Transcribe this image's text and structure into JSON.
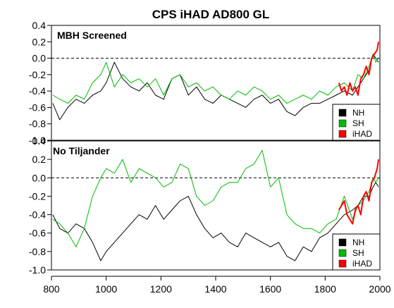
{
  "chart_data": {
    "type": "line",
    "title": "CPS iHAD AD800 GL",
    "xlabel": "",
    "ylabel": "",
    "xlim": [
      800,
      2000
    ],
    "x_ticks": [
      800,
      1000,
      1200,
      1400,
      1600,
      1800,
      2000
    ],
    "x_tick_labels": [
      "800",
      "1000",
      "1200",
      "1400",
      "1600",
      "1800",
      "2000"
    ],
    "ylim": [
      -1.0,
      0.4
    ],
    "y_ticks": [
      -1.0,
      -0.8,
      -0.6,
      -0.4,
      -0.2,
      0.0,
      0.2,
      0.4
    ],
    "y_tick_labels": [
      "-1.0",
      "-0.8",
      "-0.6",
      "-0.4",
      "-0.2",
      "0.0",
      "0.2",
      "0.4"
    ],
    "reference_line": 0.0,
    "colors": {
      "NH": "#000000",
      "SH": "#00bb00",
      "iHAD": "#ff0000"
    },
    "panels": [
      {
        "label": "MBH Screened",
        "legend_position": "bottom-right",
        "series": [
          {
            "name": "NH",
            "x": [
              805,
              830,
              860,
              890,
              920,
              950,
              980,
              1000,
              1030,
              1060,
              1090,
              1120,
              1150,
              1180,
              1210,
              1240,
              1270,
              1300,
              1330,
              1360,
              1390,
              1420,
              1450,
              1480,
              1510,
              1540,
              1570,
              1600,
              1630,
              1660,
              1690,
              1720,
              1750,
              1780,
              1810,
              1840,
              1870,
              1900,
              1920,
              1940,
              1960,
              1975,
              1985,
              1995
            ],
            "y": [
              -0.55,
              -0.75,
              -0.6,
              -0.5,
              -0.55,
              -0.45,
              -0.4,
              -0.3,
              -0.05,
              -0.25,
              -0.35,
              -0.4,
              -0.3,
              -0.45,
              -0.5,
              -0.25,
              -0.2,
              -0.45,
              -0.35,
              -0.5,
              -0.55,
              -0.45,
              -0.5,
              -0.55,
              -0.6,
              -0.5,
              -0.45,
              -0.55,
              -0.5,
              -0.65,
              -0.7,
              -0.6,
              -0.55,
              -0.55,
              -0.5,
              -0.45,
              -0.4,
              -0.45,
              -0.35,
              -0.25,
              -0.15,
              0.05,
              0.0,
              -0.05
            ]
          },
          {
            "name": "SH",
            "x": [
              805,
              830,
              860,
              890,
              920,
              950,
              980,
              1000,
              1030,
              1060,
              1090,
              1120,
              1150,
              1180,
              1210,
              1240,
              1270,
              1300,
              1330,
              1360,
              1390,
              1420,
              1450,
              1480,
              1510,
              1540,
              1570,
              1600,
              1630,
              1660,
              1690,
              1720,
              1750,
              1780,
              1810,
              1840,
              1870,
              1900,
              1920,
              1940,
              1960,
              1975,
              1985,
              1995
            ],
            "y": [
              -0.45,
              -0.5,
              -0.55,
              -0.45,
              -0.5,
              -0.3,
              -0.2,
              -0.05,
              -0.35,
              -0.2,
              -0.3,
              -0.25,
              -0.35,
              -0.25,
              -0.45,
              -0.25,
              -0.2,
              -0.35,
              -0.3,
              -0.4,
              -0.35,
              -0.45,
              -0.5,
              -0.4,
              -0.45,
              -0.35,
              -0.4,
              -0.5,
              -0.45,
              -0.55,
              -0.5,
              -0.45,
              -0.5,
              -0.4,
              -0.45,
              -0.35,
              -0.3,
              -0.4,
              -0.2,
              -0.25,
              -0.1,
              0.05,
              -0.05,
              0.0
            ]
          },
          {
            "name": "iHAD",
            "x": [
              1850,
              1860,
              1870,
              1880,
              1890,
              1900,
              1910,
              1920,
              1930,
              1940,
              1950,
              1960,
              1970,
              1980,
              1990,
              1995
            ],
            "y": [
              -0.3,
              -0.4,
              -0.35,
              -0.45,
              -0.3,
              -0.4,
              -0.35,
              -0.45,
              -0.25,
              -0.2,
              -0.1,
              -0.2,
              0.0,
              0.05,
              0.1,
              0.2
            ]
          }
        ]
      },
      {
        "label": "No Tiljander",
        "legend_position": "bottom-right",
        "series": [
          {
            "name": "NH",
            "x": [
              805,
              830,
              860,
              890,
              920,
              950,
              980,
              1000,
              1030,
              1060,
              1090,
              1120,
              1150,
              1180,
              1210,
              1240,
              1270,
              1300,
              1330,
              1360,
              1390,
              1420,
              1450,
              1480,
              1510,
              1540,
              1570,
              1600,
              1630,
              1660,
              1690,
              1720,
              1750,
              1780,
              1810,
              1840,
              1870,
              1900,
              1920,
              1940,
              1960,
              1975,
              1985,
              1995
            ],
            "y": [
              -0.4,
              -0.55,
              -0.6,
              -0.5,
              -0.55,
              -0.7,
              -0.9,
              -0.8,
              -0.7,
              -0.6,
              -0.5,
              -0.4,
              -0.45,
              -0.3,
              -0.45,
              -0.35,
              -0.25,
              -0.2,
              -0.4,
              -0.55,
              -0.65,
              -0.6,
              -0.7,
              -0.75,
              -0.6,
              -0.65,
              -0.7,
              -0.75,
              -0.7,
              -0.85,
              -0.9,
              -0.75,
              -0.8,
              -0.65,
              -0.6,
              -0.5,
              -0.4,
              -0.35,
              -0.3,
              -0.2,
              -0.2,
              -0.1,
              -0.05,
              -0.1
            ]
          },
          {
            "name": "SH",
            "x": [
              805,
              830,
              860,
              890,
              920,
              950,
              980,
              1000,
              1030,
              1060,
              1090,
              1120,
              1150,
              1180,
              1210,
              1240,
              1270,
              1300,
              1330,
              1360,
              1390,
              1420,
              1450,
              1480,
              1510,
              1540,
              1570,
              1600,
              1630,
              1660,
              1690,
              1720,
              1750,
              1780,
              1810,
              1840,
              1870,
              1900,
              1920,
              1940,
              1960,
              1975,
              1985,
              1995
            ],
            "y": [
              -0.45,
              -0.5,
              -0.6,
              -0.75,
              -0.55,
              -0.2,
              0.0,
              0.1,
              0.05,
              0.2,
              -0.05,
              0.1,
              0.05,
              0.0,
              -0.1,
              -0.05,
              0.15,
              0.1,
              -0.2,
              -0.3,
              -0.25,
              -0.1,
              -0.05,
              -0.05,
              0.1,
              0.15,
              0.3,
              -0.1,
              0.0,
              -0.4,
              -0.5,
              -0.55,
              -0.55,
              -0.6,
              -0.5,
              -0.45,
              -0.2,
              -0.45,
              -0.3,
              -0.25,
              -0.15,
              0.0,
              -0.05,
              0.0
            ]
          },
          {
            "name": "iHAD",
            "x": [
              1850,
              1860,
              1870,
              1880,
              1890,
              1900,
              1910,
              1920,
              1930,
              1940,
              1950,
              1960,
              1970,
              1980,
              1990,
              1995
            ],
            "y": [
              -0.35,
              -0.3,
              -0.25,
              -0.4,
              -0.45,
              -0.5,
              -0.35,
              -0.3,
              -0.4,
              -0.2,
              -0.15,
              -0.25,
              -0.05,
              0.0,
              0.1,
              0.2
            ]
          }
        ]
      }
    ]
  }
}
